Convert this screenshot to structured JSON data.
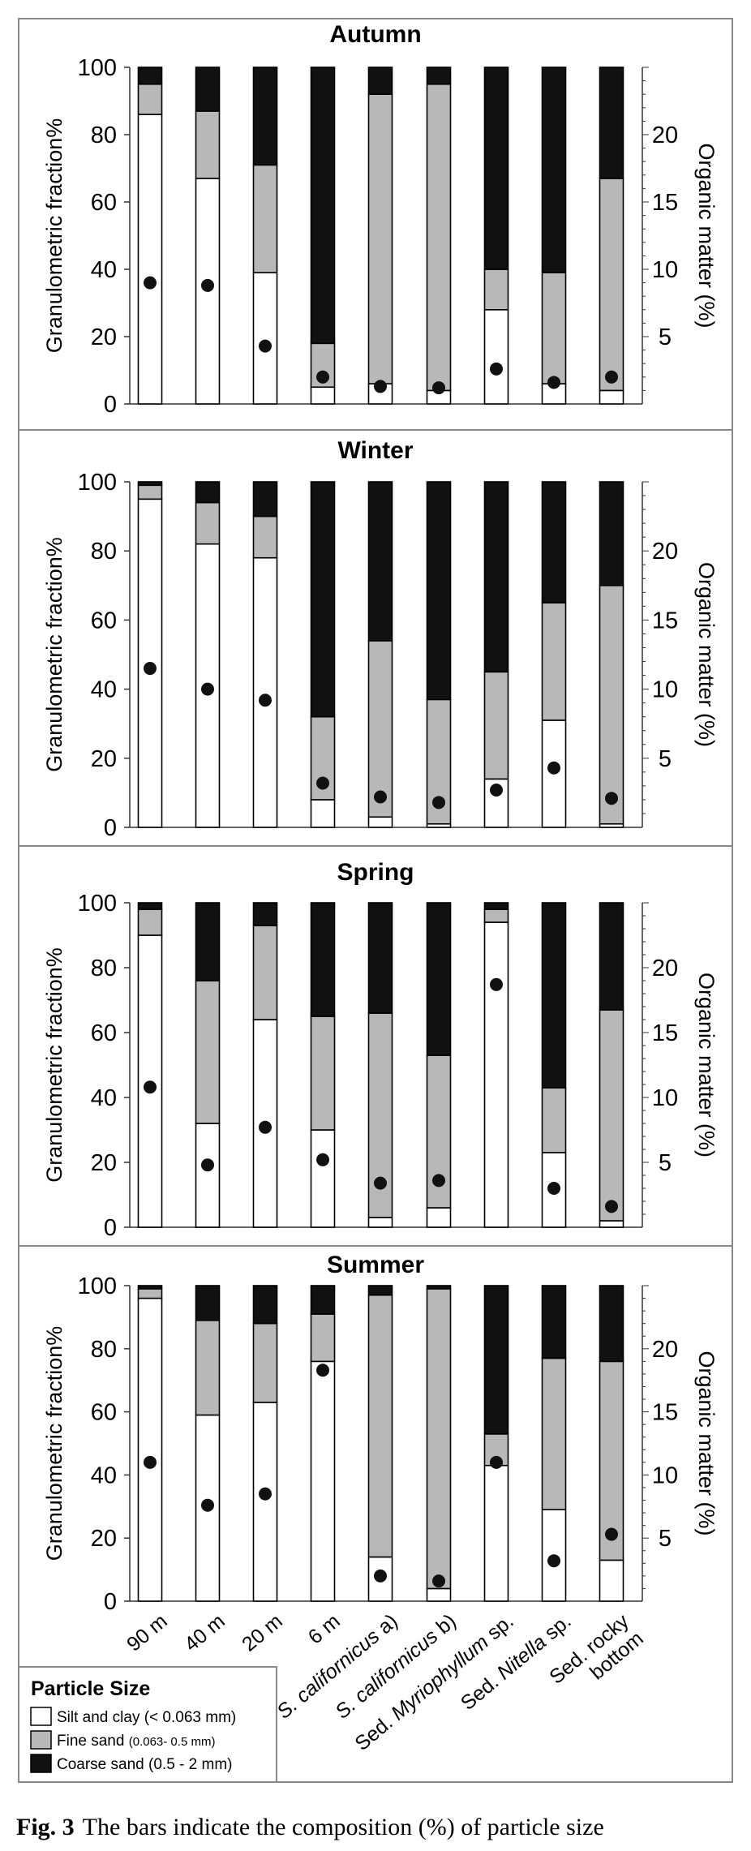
{
  "categories": [
    "90 m",
    "40 m",
    "20 m",
    "6 m",
    "S. californicus a)",
    "S. californicus b)",
    "Sed. Myriophyllum sp.",
    "Sed. Nitella sp.",
    "Sed. rocky bottom"
  ],
  "category_labels": [
    {
      "lines": [
        {
          "text": "90 m",
          "italic": false
        }
      ]
    },
    {
      "lines": [
        {
          "text": "40 m",
          "italic": false
        }
      ]
    },
    {
      "lines": [
        {
          "text": "20 m",
          "italic": false
        }
      ]
    },
    {
      "lines": [
        {
          "text": "6 m",
          "italic": false
        }
      ]
    },
    {
      "lines": [
        {
          "segments": [
            {
              "text": "S. californicus",
              "italic": true
            },
            {
              "text": " a)",
              "italic": false
            }
          ]
        }
      ]
    },
    {
      "lines": [
        {
          "segments": [
            {
              "text": "S. californicus",
              "italic": true
            },
            {
              "text": " b)",
              "italic": false
            }
          ]
        }
      ]
    },
    {
      "lines": [
        {
          "segments": [
            {
              "text": "Sed. ",
              "italic": false
            },
            {
              "text": "Myriophyllum",
              "italic": true
            },
            {
              "text": " sp.",
              "italic": false
            }
          ]
        }
      ]
    },
    {
      "lines": [
        {
          "segments": [
            {
              "text": "Sed. ",
              "italic": false
            },
            {
              "text": "Nitella",
              "italic": true
            },
            {
              "text": " sp.",
              "italic": false
            }
          ]
        }
      ]
    },
    {
      "lines": [
        {
          "text": "Sed. rocky",
          "italic": false
        },
        {
          "text": "bottom",
          "italic": false
        }
      ]
    }
  ],
  "axis_labels": {
    "left": "Granulometric fraction%",
    "right": "Organic matter (%)"
  },
  "left_ticks": [
    "0",
    "20",
    "40",
    "60",
    "80",
    "100"
  ],
  "right_ticks": [
    "5",
    "10",
    "15",
    "20"
  ],
  "colors": {
    "silt": "#ffffff",
    "fine": "#b8b8b8",
    "coarse": "#111111"
  },
  "legend": {
    "title": "Particle Size",
    "items": [
      {
        "label": "Silt and clay",
        "detail": "(< 0.063 mm)",
        "detail_small": false,
        "color": "#ffffff"
      },
      {
        "label": "Fine sand",
        "detail": "(0.063- 0.5 mm)",
        "detail_small": true,
        "color": "#b8b8b8"
      },
      {
        "label": "Coarse sand",
        "detail": "(0.5 - 2 mm)",
        "detail_small": false,
        "color": "#111111"
      }
    ]
  },
  "caption": {
    "label": "Fig. 3",
    "text": "The bars indicate the composition (%) of particle size"
  },
  "chart_data": [
    {
      "type": "bar",
      "title": "Autumn",
      "ylabel": "Granulometric fraction%",
      "y2label": "Organic matter (%)",
      "ylim": [
        0,
        100
      ],
      "y2lim": [
        0,
        25
      ],
      "categories": [
        "90 m",
        "40 m",
        "20 m",
        "6 m",
        "S. californicus a)",
        "S. californicus b)",
        "Sed. Myriophyllum sp.",
        "Sed. Nitella sp.",
        "Sed. rocky bottom"
      ],
      "series": [
        {
          "name": "Silt and clay (< 0.063 mm)",
          "values": [
            86,
            67,
            39,
            5,
            6,
            4,
            28,
            6,
            4
          ]
        },
        {
          "name": "Fine sand (0.063- 0.5 mm)",
          "values": [
            9,
            20,
            32,
            13,
            86,
            91,
            12,
            33,
            63
          ]
        },
        {
          "name": "Coarse sand (0.5 - 2 mm)",
          "values": [
            5,
            13,
            29,
            82,
            8,
            5,
            60,
            61,
            33
          ]
        }
      ],
      "organic_matter": [
        9.0,
        8.8,
        4.3,
        2.0,
        1.3,
        1.2,
        2.6,
        1.6,
        2.0
      ]
    },
    {
      "type": "bar",
      "title": "Winter",
      "ylabel": "Granulometric fraction%",
      "y2label": "Organic matter (%)",
      "ylim": [
        0,
        100
      ],
      "y2lim": [
        0,
        25
      ],
      "categories": [
        "90 m",
        "40 m",
        "20 m",
        "6 m",
        "S. californicus a)",
        "S. californicus b)",
        "Sed. Myriophyllum sp.",
        "Sed. Nitella sp.",
        "Sed. rocky bottom"
      ],
      "series": [
        {
          "name": "Silt and clay (< 0.063 mm)",
          "values": [
            95,
            82,
            78,
            8,
            3,
            1,
            14,
            31,
            1
          ]
        },
        {
          "name": "Fine sand (0.063- 0.5 mm)",
          "values": [
            4,
            12,
            12,
            24,
            51,
            36,
            31,
            34,
            69
          ]
        },
        {
          "name": "Coarse sand (0.5 - 2 mm)",
          "values": [
            1,
            6,
            10,
            68,
            46,
            63,
            55,
            35,
            30
          ]
        }
      ],
      "organic_matter": [
        11.5,
        10.0,
        9.2,
        3.2,
        2.2,
        1.8,
        2.7,
        4.3,
        2.1
      ]
    },
    {
      "type": "bar",
      "title": "Spring",
      "ylabel": "Granulometric fraction%",
      "y2label": "Organic matter (%)",
      "ylim": [
        0,
        100
      ],
      "y2lim": [
        0,
        25
      ],
      "categories": [
        "90 m",
        "40 m",
        "20 m",
        "6 m",
        "S. californicus a)",
        "S. californicus b)",
        "Sed. Myriophyllum sp.",
        "Sed. Nitella sp.",
        "Sed. rocky bottom"
      ],
      "series": [
        {
          "name": "Silt and clay (< 0.063 mm)",
          "values": [
            90,
            32,
            64,
            30,
            3,
            6,
            94,
            23,
            2
          ]
        },
        {
          "name": "Fine sand (0.063- 0.5 mm)",
          "values": [
            8,
            44,
            29,
            35,
            63,
            47,
            4,
            20,
            65
          ]
        },
        {
          "name": "Coarse sand (0.5 - 2 mm)",
          "values": [
            2,
            24,
            7,
            35,
            34,
            47,
            2,
            57,
            33
          ]
        }
      ],
      "organic_matter": [
        10.8,
        4.8,
        7.7,
        5.2,
        3.4,
        3.6,
        18.7,
        3.0,
        1.6
      ]
    },
    {
      "type": "bar",
      "title": "Summer",
      "ylabel": "Granulometric fraction%",
      "y2label": "Organic matter (%)",
      "ylim": [
        0,
        100
      ],
      "y2lim": [
        0,
        25
      ],
      "categories": [
        "90 m",
        "40 m",
        "20 m",
        "6 m",
        "S. californicus a)",
        "S. californicus b)",
        "Sed. Myriophyllum sp.",
        "Sed. Nitella sp.",
        "Sed. rocky bottom"
      ],
      "series": [
        {
          "name": "Silt and clay (< 0.063 mm)",
          "values": [
            96,
            59,
            63,
            76,
            14,
            4,
            43,
            29,
            13
          ]
        },
        {
          "name": "Fine sand (0.063- 0.5 mm)",
          "values": [
            3,
            30,
            25,
            15,
            83,
            95,
            10,
            48,
            63
          ]
        },
        {
          "name": "Coarse sand (0.5 - 2 mm)",
          "values": [
            1,
            11,
            12,
            9,
            3,
            1,
            47,
            23,
            24
          ]
        }
      ],
      "organic_matter": [
        11.0,
        7.6,
        8.5,
        18.3,
        2.0,
        1.6,
        11.0,
        3.2,
        5.3
      ]
    }
  ]
}
